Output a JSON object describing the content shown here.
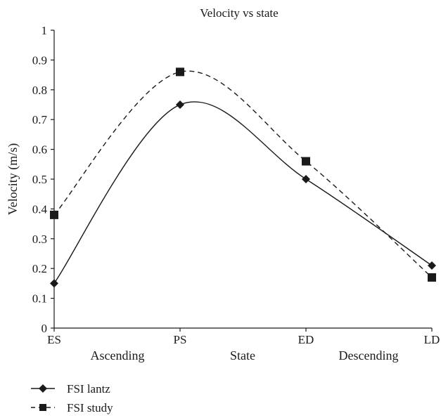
{
  "chart_data": {
    "type": "line",
    "title": "Velocity vs state",
    "xlabel": "State",
    "ylabel": "Velocity (m/s)",
    "categories": [
      "ES",
      "PS",
      "ED",
      "LD"
    ],
    "region_labels": [
      "Ascending",
      "Descending"
    ],
    "ylim": [
      0,
      1
    ],
    "yticks": [
      "0",
      "0.1",
      "0.2",
      "0.3",
      "0.4",
      "0.5",
      "0.6",
      "0.7",
      "0.8",
      "0.9",
      "1"
    ],
    "grid": false,
    "legend_position": "bottom-left",
    "series": [
      {
        "name": "FSI lantz",
        "values": [
          0.15,
          0.75,
          0.5,
          0.21
        ],
        "marker": "diamond",
        "line": "solid",
        "color": "#1a1a1a"
      },
      {
        "name": "FSI study",
        "values": [
          0.38,
          0.86,
          0.56,
          0.17
        ],
        "marker": "square",
        "line": "dashed",
        "color": "#1a1a1a"
      }
    ]
  }
}
